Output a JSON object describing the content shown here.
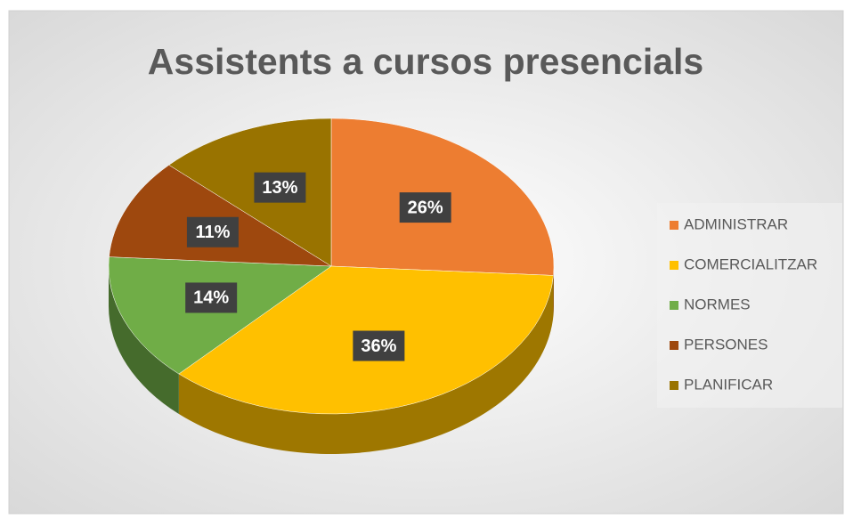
{
  "chart_data": {
    "type": "pie",
    "title": "Assistents a cursos presencials",
    "categories": [
      "ADMINISTRAR",
      "COMERCIALITZAR",
      "NORMES",
      "PERSONES",
      "PLANIFICAR"
    ],
    "values": [
      26,
      36,
      14,
      11,
      13
    ],
    "value_labels": [
      "26%",
      "36%",
      "14%",
      "11%",
      "13%"
    ],
    "colors": [
      "#ED7D31",
      "#FFC000",
      "#70AD47",
      "#9E480E",
      "#997300"
    ],
    "legend": "right"
  }
}
